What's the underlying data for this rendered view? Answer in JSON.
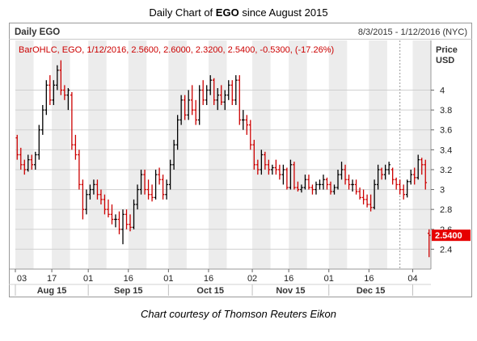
{
  "title_pre": "Daily Chart of ",
  "title_bold": "EGO",
  "title_post": " since August 2015",
  "header": {
    "symbol_label": "Daily EGO",
    "date_range": "8/3/2015 - 1/12/2016 (NYC)"
  },
  "legend_text": "BarOHLC, EGO, 1/12/2016, 2.5600, 2.6000, 2.3200, 2.5400, -0.5300, (-17.26%)",
  "axis_title_line1": "Price",
  "axis_title_line2": "USD",
  "last_price_label": "2.5400",
  "caption": "Chart courtesy of Thomson Reuters Eikon",
  "colors": {
    "up": "#000000",
    "down": "#cc0000",
    "band": "#ececec",
    "grid": "#d0d0d0",
    "badge": "#e60000"
  },
  "chart_data": {
    "type": "ohlc",
    "ylim": [
      2.2,
      4.5
    ],
    "yticks": [
      2.4,
      2.6,
      2.8,
      3,
      3.2,
      3.4,
      3.6,
      3.8,
      4
    ],
    "ytick_labels": [
      "2.4",
      "2.6",
      "2.8",
      "3",
      "3.2",
      "3.4",
      "3.6",
      "3.8",
      "4"
    ],
    "xticks": [
      {
        "label": "03",
        "index": 0
      },
      {
        "label": "17",
        "index": 10
      },
      {
        "label": "01",
        "index": 20
      },
      {
        "label": "16",
        "index": 31
      },
      {
        "label": "01",
        "index": 42
      },
      {
        "label": "16",
        "index": 53
      },
      {
        "label": "02",
        "index": 65
      },
      {
        "label": "16",
        "index": 75
      },
      {
        "label": "01",
        "index": 86
      },
      {
        "label": "16",
        "index": 97
      },
      {
        "label": "04",
        "index": 109
      }
    ],
    "months": [
      {
        "label": "Aug 15",
        "from": 0,
        "to": 20
      },
      {
        "label": "Sep 15",
        "from": 20,
        "to": 42
      },
      {
        "label": "Oct 15",
        "from": 42,
        "to": 65
      },
      {
        "label": "Nov 15",
        "from": 65,
        "to": 86
      },
      {
        "label": "Dec 15",
        "from": 86,
        "to": 109
      },
      {
        "label": "",
        "from": 109,
        "to": 115
      }
    ],
    "bands": [
      {
        "from": 0,
        "to": 5
      },
      {
        "from": 10,
        "to": 15
      },
      {
        "from": 20,
        "to": 25
      },
      {
        "from": 31,
        "to": 36
      },
      {
        "from": 42,
        "to": 47
      },
      {
        "from": 53,
        "to": 58
      },
      {
        "from": 65,
        "to": 70
      },
      {
        "from": 75,
        "to": 80
      },
      {
        "from": 86,
        "to": 91
      },
      {
        "from": 97,
        "to": 102
      },
      {
        "from": 109,
        "to": 114
      }
    ],
    "year_marker_index": 105.5,
    "last_close": 2.54,
    "ohlc": [
      {
        "o": 3.52,
        "h": 3.55,
        "l": 3.3,
        "c": 3.35
      },
      {
        "o": 3.35,
        "h": 3.42,
        "l": 3.2,
        "c": 3.25
      },
      {
        "o": 3.25,
        "h": 3.3,
        "l": 3.15,
        "c": 3.2
      },
      {
        "o": 3.2,
        "h": 3.35,
        "l": 3.18,
        "c": 3.3
      },
      {
        "o": 3.3,
        "h": 3.35,
        "l": 3.2,
        "c": 3.25
      },
      {
        "o": 3.25,
        "h": 3.38,
        "l": 3.2,
        "c": 3.35
      },
      {
        "o": 3.35,
        "h": 3.65,
        "l": 3.3,
        "c": 3.6
      },
      {
        "o": 3.6,
        "h": 3.85,
        "l": 3.55,
        "c": 3.8
      },
      {
        "o": 3.8,
        "h": 4.1,
        "l": 3.75,
        "c": 4.05
      },
      {
        "o": 4.05,
        "h": 4.15,
        "l": 3.85,
        "c": 3.9
      },
      {
        "o": 3.9,
        "h": 4.1,
        "l": 3.85,
        "c": 4.05
      },
      {
        "o": 4.05,
        "h": 4.25,
        "l": 4.0,
        "c": 4.2
      },
      {
        "o": 4.2,
        "h": 4.3,
        "l": 3.95,
        "c": 4.0
      },
      {
        "o": 4.0,
        "h": 4.05,
        "l": 3.9,
        "c": 3.95
      },
      {
        "o": 3.95,
        "h": 4.02,
        "l": 3.8,
        "c": 4.0
      },
      {
        "o": 3.95,
        "h": 3.98,
        "l": 3.4,
        "c": 3.45
      },
      {
        "o": 3.45,
        "h": 3.55,
        "l": 3.3,
        "c": 3.35
      },
      {
        "o": 3.35,
        "h": 3.4,
        "l": 3.0,
        "c": 3.05
      },
      {
        "o": 3.05,
        "h": 3.1,
        "l": 2.7,
        "c": 2.8
      },
      {
        "o": 2.8,
        "h": 3.0,
        "l": 2.75,
        "c": 2.95
      },
      {
        "o": 2.95,
        "h": 3.05,
        "l": 2.9,
        "c": 3.0
      },
      {
        "o": 3.0,
        "h": 3.1,
        "l": 2.95,
        "c": 3.05
      },
      {
        "o": 3.05,
        "h": 3.1,
        "l": 2.9,
        "c": 2.95
      },
      {
        "o": 2.95,
        "h": 3.0,
        "l": 2.85,
        "c": 2.9
      },
      {
        "o": 2.9,
        "h": 2.95,
        "l": 2.75,
        "c": 2.8
      },
      {
        "o": 2.8,
        "h": 2.9,
        "l": 2.72,
        "c": 2.75
      },
      {
        "o": 2.75,
        "h": 2.85,
        "l": 2.65,
        "c": 2.7
      },
      {
        "o": 2.7,
        "h": 2.75,
        "l": 2.62,
        "c": 2.7
      },
      {
        "o": 2.7,
        "h": 2.78,
        "l": 2.55,
        "c": 2.6
      },
      {
        "o": 2.6,
        "h": 2.8,
        "l": 2.45,
        "c": 2.75
      },
      {
        "o": 2.75,
        "h": 2.8,
        "l": 2.6,
        "c": 2.65
      },
      {
        "o": 2.65,
        "h": 2.75,
        "l": 2.58,
        "c": 2.62
      },
      {
        "o": 2.62,
        "h": 2.9,
        "l": 2.6,
        "c": 2.85
      },
      {
        "o": 2.85,
        "h": 3.05,
        "l": 2.8,
        "c": 3.0
      },
      {
        "o": 3.0,
        "h": 3.2,
        "l": 2.95,
        "c": 3.15
      },
      {
        "o": 3.15,
        "h": 3.2,
        "l": 2.95,
        "c": 3.0
      },
      {
        "o": 3.0,
        "h": 3.1,
        "l": 2.9,
        "c": 2.95
      },
      {
        "o": 2.95,
        "h": 3.05,
        "l": 2.88,
        "c": 2.92
      },
      {
        "o": 2.92,
        "h": 3.2,
        "l": 2.9,
        "c": 3.15
      },
      {
        "o": 3.15,
        "h": 3.22,
        "l": 3.05,
        "c": 3.1
      },
      {
        "o": 3.1,
        "h": 3.15,
        "l": 2.9,
        "c": 2.95
      },
      {
        "o": 2.95,
        "h": 3.1,
        "l": 2.9,
        "c": 3.05
      },
      {
        "o": 3.05,
        "h": 3.3,
        "l": 3.0,
        "c": 3.25
      },
      {
        "o": 3.25,
        "h": 3.5,
        "l": 3.2,
        "c": 3.45
      },
      {
        "o": 3.45,
        "h": 3.75,
        "l": 3.4,
        "c": 3.7
      },
      {
        "o": 3.7,
        "h": 3.95,
        "l": 3.65,
        "c": 3.9
      },
      {
        "o": 3.9,
        "h": 3.95,
        "l": 3.7,
        "c": 3.75
      },
      {
        "o": 3.75,
        "h": 4.0,
        "l": 3.7,
        "c": 3.9
      },
      {
        "o": 3.9,
        "h": 4.05,
        "l": 3.75,
        "c": 3.8
      },
      {
        "o": 3.8,
        "h": 3.9,
        "l": 3.65,
        "c": 3.7
      },
      {
        "o": 3.7,
        "h": 4.05,
        "l": 3.65,
        "c": 4.0
      },
      {
        "o": 4.0,
        "h": 4.1,
        "l": 3.85,
        "c": 3.9
      },
      {
        "o": 3.9,
        "h": 4.05,
        "l": 3.85,
        "c": 4.0
      },
      {
        "o": 4.0,
        "h": 4.15,
        "l": 3.95,
        "c": 4.1
      },
      {
        "o": 4.1,
        "h": 4.12,
        "l": 3.85,
        "c": 3.9
      },
      {
        "o": 3.9,
        "h": 4.02,
        "l": 3.8,
        "c": 3.95
      },
      {
        "o": 3.95,
        "h": 4.05,
        "l": 3.85,
        "c": 3.88
      },
      {
        "o": 3.88,
        "h": 4.0,
        "l": 3.8,
        "c": 3.95
      },
      {
        "o": 3.95,
        "h": 4.1,
        "l": 3.9,
        "c": 4.05
      },
      {
        "o": 4.05,
        "h": 4.1,
        "l": 3.85,
        "c": 3.9
      },
      {
        "o": 3.9,
        "h": 4.15,
        "l": 3.85,
        "c": 4.1
      },
      {
        "o": 4.1,
        "h": 4.15,
        "l": 3.65,
        "c": 3.7
      },
      {
        "o": 3.7,
        "h": 3.8,
        "l": 3.6,
        "c": 3.7
      },
      {
        "o": 3.7,
        "h": 3.75,
        "l": 3.55,
        "c": 3.65
      },
      {
        "o": 3.65,
        "h": 3.7,
        "l": 3.4,
        "c": 3.45
      },
      {
        "o": 3.45,
        "h": 3.5,
        "l": 3.2,
        "c": 3.25
      },
      {
        "o": 3.25,
        "h": 3.3,
        "l": 3.15,
        "c": 3.2
      },
      {
        "o": 3.2,
        "h": 3.4,
        "l": 3.15,
        "c": 3.35
      },
      {
        "o": 3.35,
        "h": 3.38,
        "l": 3.2,
        "c": 3.25
      },
      {
        "o": 3.25,
        "h": 3.3,
        "l": 3.15,
        "c": 3.2
      },
      {
        "o": 3.2,
        "h": 3.25,
        "l": 3.15,
        "c": 3.22
      },
      {
        "o": 3.22,
        "h": 3.3,
        "l": 3.15,
        "c": 3.2
      },
      {
        "o": 3.2,
        "h": 3.25,
        "l": 3.1,
        "c": 3.15
      },
      {
        "o": 3.15,
        "h": 3.25,
        "l": 3.05,
        "c": 3.2
      },
      {
        "o": 3.2,
        "h": 3.22,
        "l": 3.0,
        "c": 3.02
      },
      {
        "o": 3.02,
        "h": 3.3,
        "l": 3.0,
        "c": 3.25
      },
      {
        "o": 3.25,
        "h": 3.28,
        "l": 3.0,
        "c": 3.02
      },
      {
        "o": 3.02,
        "h": 3.08,
        "l": 2.98,
        "c": 3.0
      },
      {
        "o": 3.0,
        "h": 3.05,
        "l": 2.97,
        "c": 3.02
      },
      {
        "o": 3.02,
        "h": 3.15,
        "l": 3.0,
        "c": 3.1
      },
      {
        "o": 3.1,
        "h": 3.15,
        "l": 3.0,
        "c": 3.02
      },
      {
        "o": 3.02,
        "h": 3.05,
        "l": 2.95,
        "c": 3.0
      },
      {
        "o": 3.0,
        "h": 3.08,
        "l": 2.95,
        "c": 3.05
      },
      {
        "o": 3.05,
        "h": 3.1,
        "l": 3.0,
        "c": 3.05
      },
      {
        "o": 3.05,
        "h": 3.15,
        "l": 3.0,
        "c": 3.1
      },
      {
        "o": 3.1,
        "h": 3.12,
        "l": 3.0,
        "c": 3.05
      },
      {
        "o": 3.05,
        "h": 3.08,
        "l": 2.95,
        "c": 2.98
      },
      {
        "o": 2.98,
        "h": 3.05,
        "l": 2.95,
        "c": 3.02
      },
      {
        "o": 3.02,
        "h": 3.2,
        "l": 3.0,
        "c": 3.15
      },
      {
        "o": 3.15,
        "h": 3.28,
        "l": 3.1,
        "c": 3.2
      },
      {
        "o": 3.2,
        "h": 3.25,
        "l": 3.05,
        "c": 3.1
      },
      {
        "o": 3.1,
        "h": 3.15,
        "l": 3.0,
        "c": 3.05
      },
      {
        "o": 3.05,
        "h": 3.1,
        "l": 2.98,
        "c": 3.05
      },
      {
        "o": 3.05,
        "h": 3.1,
        "l": 2.95,
        "c": 2.98
      },
      {
        "o": 2.98,
        "h": 3.02,
        "l": 2.9,
        "c": 2.92
      },
      {
        "o": 2.92,
        "h": 3.0,
        "l": 2.85,
        "c": 2.9
      },
      {
        "o": 2.9,
        "h": 2.95,
        "l": 2.82,
        "c": 2.85
      },
      {
        "o": 2.85,
        "h": 2.95,
        "l": 2.78,
        "c": 2.82
      },
      {
        "o": 2.82,
        "h": 3.1,
        "l": 2.8,
        "c": 3.05
      },
      {
        "o": 3.05,
        "h": 3.25,
        "l": 3.0,
        "c": 3.2
      },
      {
        "o": 3.2,
        "h": 3.22,
        "l": 3.1,
        "c": 3.15
      },
      {
        "o": 3.15,
        "h": 3.25,
        "l": 3.1,
        "c": 3.2
      },
      {
        "o": 3.2,
        "h": 3.28,
        "l": 3.15,
        "c": 3.25
      },
      {
        "o": 3.2,
        "h": 3.22,
        "l": 3.05,
        "c": 3.1
      },
      {
        "o": 3.1,
        "h": 3.12,
        "l": 3.0,
        "c": 3.05
      },
      {
        "o": 3.05,
        "h": 3.1,
        "l": 2.95,
        "c": 3.0
      },
      {
        "o": 3.0,
        "h": 3.05,
        "l": 2.9,
        "c": 2.95
      },
      {
        "o": 2.95,
        "h": 3.1,
        "l": 2.92,
        "c": 3.08
      },
      {
        "o": 3.08,
        "h": 3.2,
        "l": 3.05,
        "c": 3.15
      },
      {
        "o": 3.15,
        "h": 3.22,
        "l": 3.05,
        "c": 3.12
      },
      {
        "o": 3.12,
        "h": 3.35,
        "l": 3.1,
        "c": 3.3
      },
      {
        "o": 3.3,
        "h": 3.32,
        "l": 3.15,
        "c": 3.25
      },
      {
        "o": 3.25,
        "h": 3.3,
        "l": 3.0,
        "c": 3.07
      },
      {
        "o": 2.56,
        "h": 2.6,
        "l": 2.32,
        "c": 2.54
      }
    ]
  }
}
